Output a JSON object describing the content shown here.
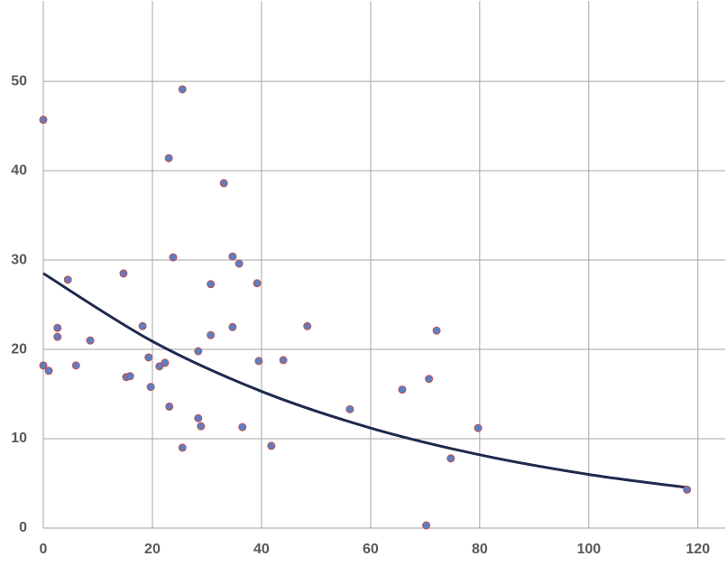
{
  "chart_data": {
    "type": "scatter",
    "xlim": [
      0,
      125
    ],
    "ylim": [
      0,
      59
    ],
    "xticks": [
      0,
      20,
      40,
      60,
      80,
      100,
      120
    ],
    "yticks": [
      0,
      10,
      20,
      30,
      40,
      50
    ],
    "grid": true,
    "series": [
      {
        "color": "#5b7fc4",
        "edge_color": "#c0504d",
        "x": [
          0,
          0,
          1,
          2.6,
          2.6,
          4.5,
          6,
          8.6,
          14.7,
          15.2,
          15.9,
          18.2,
          19.3,
          19.7,
          21.3,
          22.3,
          23,
          23.1,
          23.8,
          25.5,
          25.5,
          28.4,
          28.4,
          28.9,
          30.7,
          30.7,
          33.1,
          34.7,
          34.7,
          35.9,
          36.5,
          39.2,
          39.5,
          41.8,
          44,
          48.4,
          56.2,
          65.8,
          70.2,
          70.7,
          72.1,
          74.7,
          79.7,
          118
        ],
        "values": [
          45.7,
          18.2,
          17.6,
          22.4,
          21.4,
          27.8,
          18.2,
          21.0,
          28.5,
          16.9,
          17.0,
          22.6,
          19.1,
          15.8,
          18.1,
          18.5,
          41.4,
          13.6,
          30.3,
          49.1,
          9.0,
          19.8,
          12.3,
          11.4,
          27.3,
          21.6,
          38.6,
          30.4,
          22.5,
          29.6,
          11.3,
          27.4,
          18.7,
          9.2,
          18.8,
          22.6,
          13.3,
          15.5,
          0.3,
          16.7,
          22.1,
          7.8,
          11.2,
          4.3
        ]
      }
    ],
    "trendline": {
      "type": "exponential",
      "color": "#1f2a4f",
      "x": [
        0,
        20,
        40,
        60,
        80,
        100,
        118.5
      ],
      "values": [
        28.5,
        20.9,
        15.3,
        11.2,
        8.2,
        6.0,
        4.5
      ]
    }
  }
}
